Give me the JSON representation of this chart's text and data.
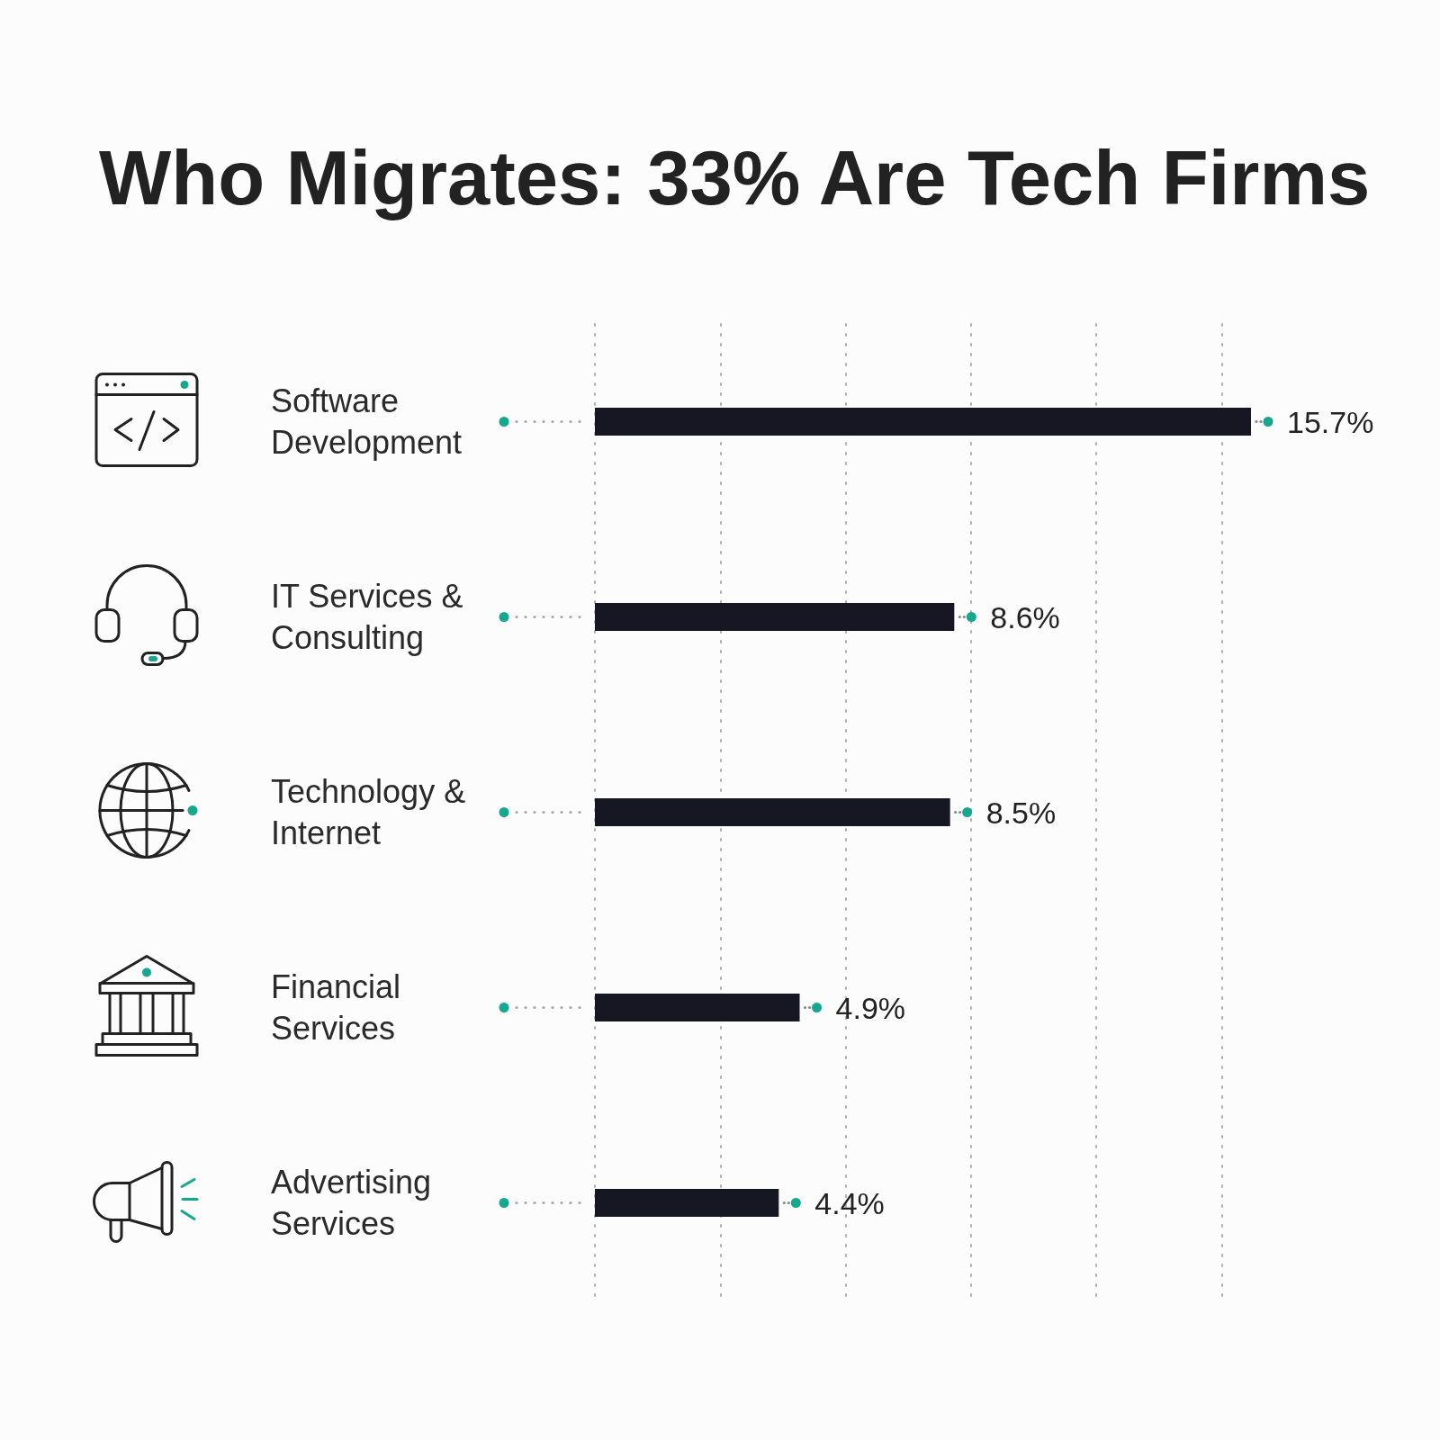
{
  "chart_data": {
    "type": "bar",
    "orientation": "horizontal",
    "title": "Who Migrates: 33% Are Tech Firms",
    "categories": [
      "Software Development",
      "IT Services & Consulting",
      "Technology & Internet",
      "Financial Services",
      "Advertising Services"
    ],
    "values": [
      15.7,
      8.6,
      8.5,
      4.9,
      4.4
    ],
    "value_labels": [
      "15.7%",
      "8.6%",
      "8.5%",
      "4.9%",
      "4.4%"
    ],
    "color": "#161723",
    "xticks": [
      0,
      3,
      6,
      9,
      12,
      15
    ],
    "grid": "x",
    "tick_labels": "y"
  }
}
